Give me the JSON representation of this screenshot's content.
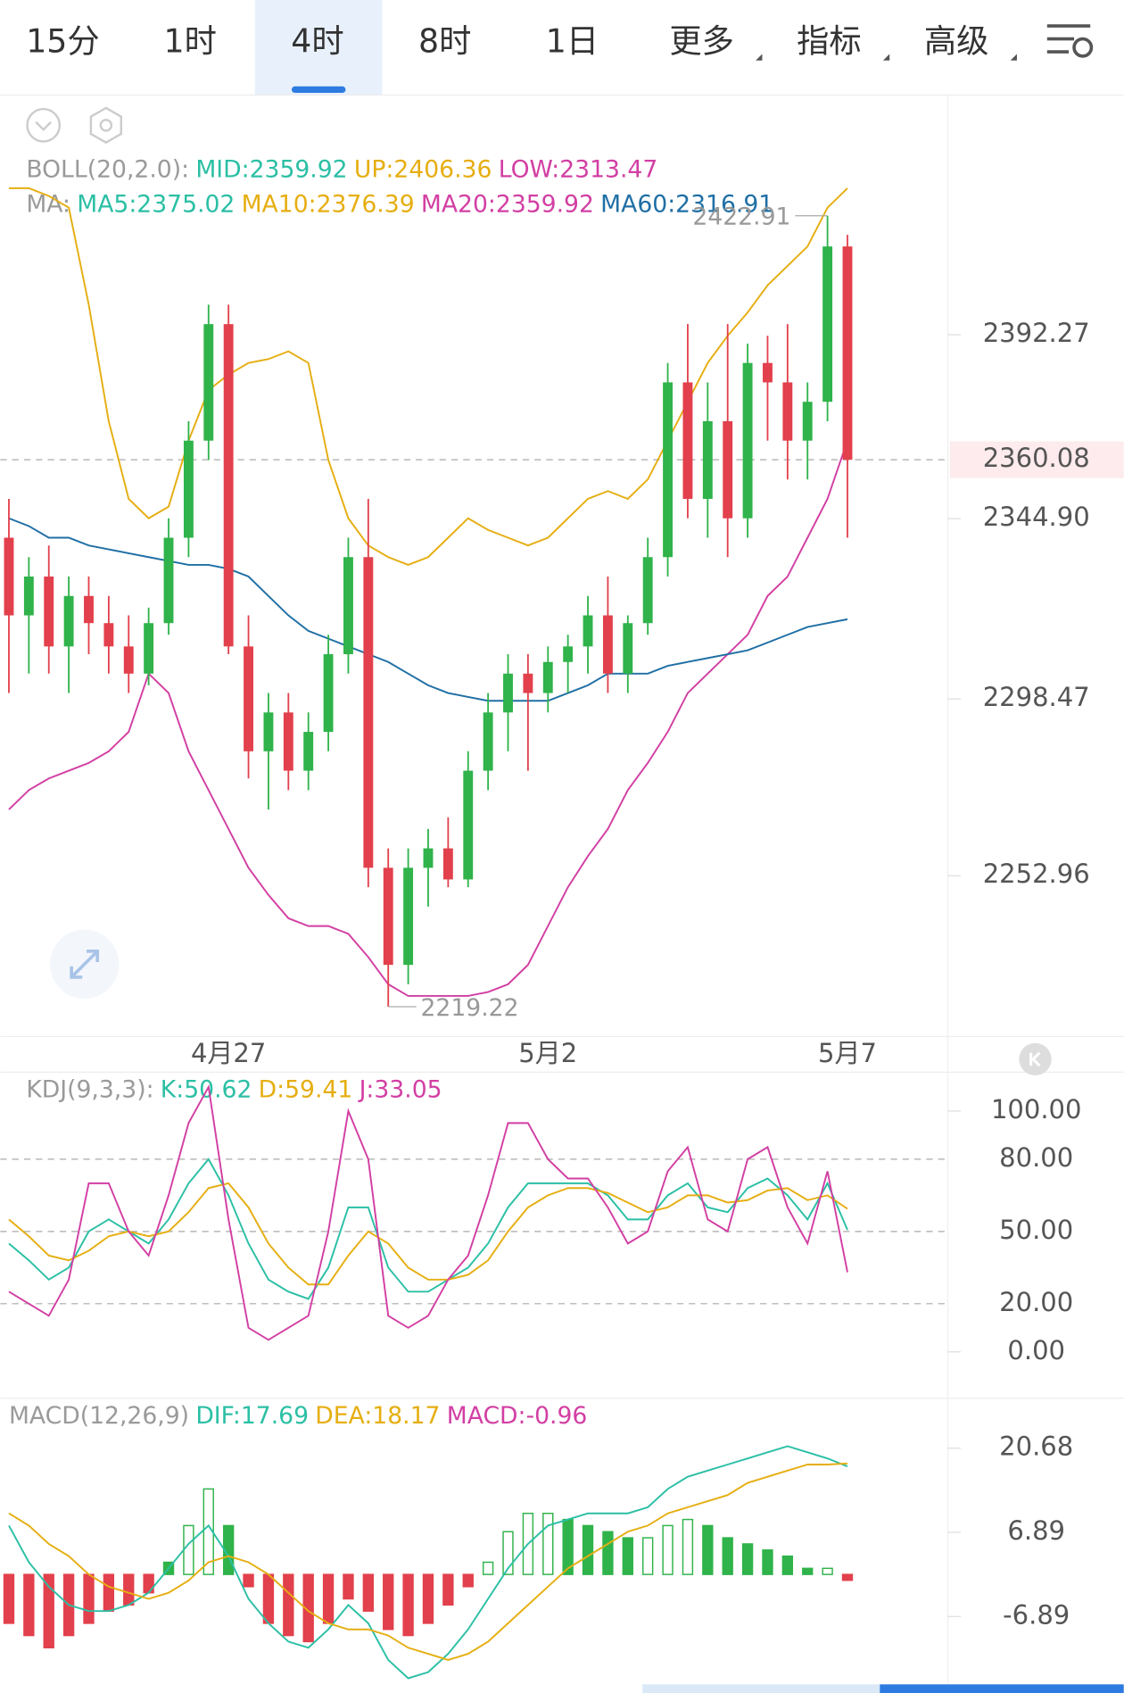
{
  "tabs": [
    {
      "label": "15分"
    },
    {
      "label": "1时"
    },
    {
      "label": "4时",
      "active": true
    },
    {
      "label": "8时"
    },
    {
      "label": "1日"
    },
    {
      "label": "更多",
      "dropdown": true
    },
    {
      "label": "指标",
      "dropdown": true
    },
    {
      "label": "高级",
      "dropdown": true
    }
  ],
  "chart_data": [
    {
      "type": "candlestick",
      "legend": [
        [
          {
            "text": "BOLL(20,2.0):",
            "color": "#9a9a9a"
          },
          {
            "text": "MID:2359.92",
            "color": "#2bbfa5"
          },
          {
            "text": "UP:2406.36",
            "color": "#e6ae12"
          },
          {
            "text": "LOW:2313.47",
            "color": "#d23fa3"
          }
        ],
        [
          {
            "text": "MA:",
            "color": "#9a9a9a"
          },
          {
            "text": "MA5:2375.02",
            "color": "#2bbfa5"
          },
          {
            "text": "MA10:2376.39",
            "color": "#e6ae12"
          },
          {
            "text": "MA20:2359.92",
            "color": "#d23fa3"
          },
          {
            "text": "MA60:2316.91",
            "color": "#1f6fa5"
          }
        ]
      ],
      "categories": [
        null,
        null,
        null,
        null,
        null,
        null,
        null,
        null,
        null,
        null,
        null,
        "4月27",
        null,
        null,
        null,
        null,
        null,
        null,
        null,
        null,
        null,
        null,
        null,
        null,
        null,
        null,
        null,
        "5月2",
        null,
        null,
        null,
        null,
        null,
        null,
        null,
        null,
        null,
        null,
        null,
        null,
        null,
        null,
        "5月7"
      ],
      "open": [
        2340,
        2320,
        2330,
        2312,
        2325,
        2318,
        2312,
        2305,
        2318,
        2340,
        2365,
        2395,
        2312,
        2285,
        2295,
        2280,
        2290,
        2310,
        2335,
        2255,
        2230,
        2255,
        2260,
        2252,
        2280,
        2295,
        2305,
        2300,
        2308,
        2312,
        2320,
        2305,
        2318,
        2335,
        2380,
        2350,
        2370,
        2345,
        2385,
        2380,
        2365,
        2375,
        2415
      ],
      "high": [
        2350,
        2335,
        2338,
        2330,
        2330,
        2325,
        2320,
        2322,
        2345,
        2370,
        2400,
        2400,
        2320,
        2300,
        2300,
        2295,
        2315,
        2340,
        2350,
        2260,
        2260,
        2265,
        2268,
        2285,
        2300,
        2310,
        2310,
        2312,
        2315,
        2325,
        2330,
        2320,
        2340,
        2385,
        2395,
        2380,
        2395,
        2390,
        2392,
        2395,
        2380,
        2422.91,
        2418
      ],
      "low": [
        2300,
        2305,
        2305,
        2300,
        2310,
        2305,
        2300,
        2302,
        2315,
        2335,
        2360,
        2310,
        2278,
        2270,
        2275,
        2275,
        2285,
        2305,
        2250,
        2219.22,
        2225,
        2245,
        2250,
        2250,
        2275,
        2285,
        2280,
        2295,
        2300,
        2305,
        2300,
        2300,
        2315,
        2330,
        2345,
        2340,
        2335,
        2340,
        2365,
        2355,
        2355,
        2370,
        2340
      ],
      "close": [
        2320,
        2330,
        2312,
        2325,
        2318,
        2312,
        2305,
        2318,
        2340,
        2365,
        2395,
        2312,
        2285,
        2295,
        2280,
        2290,
        2310,
        2335,
        2255,
        2230,
        2255,
        2260,
        2252,
        2280,
        2295,
        2305,
        2300,
        2308,
        2312,
        2320,
        2305,
        2318,
        2335,
        2380,
        2350,
        2370,
        2345,
        2385,
        2380,
        2365,
        2375,
        2415,
        2360.08
      ],
      "up_color": "#2fb34a",
      "down_color": "#e2404c",
      "series": [
        {
          "color": "#e6ae12",
          "values": [
            2430,
            2430,
            2428,
            2425,
            2400,
            2370,
            2350,
            2345,
            2348,
            2365,
            2378,
            2382,
            2385,
            2386,
            2388,
            2385,
            2360,
            2345,
            2338,
            2335,
            2333,
            2335,
            2340,
            2345,
            2342,
            2340,
            2338,
            2340,
            2345,
            2350,
            2352,
            2350,
            2355,
            2365,
            2375,
            2385,
            2392,
            2398,
            2405,
            2410,
            2415,
            2425,
            2430
          ]
        },
        {
          "color": "#d23fa3",
          "values": [
            2270,
            2275,
            2278,
            2280,
            2282,
            2285,
            2290,
            2305,
            2300,
            2285,
            2275,
            2265,
            2255,
            2248,
            2242,
            2240,
            2240,
            2238,
            2232,
            2225,
            2222,
            2222,
            2222,
            2222,
            2223,
            2225,
            2230,
            2240,
            2250,
            2258,
            2265,
            2275,
            2282,
            2290,
            2300,
            2305,
            2310,
            2315,
            2325,
            2330,
            2340,
            2350,
            2365
          ]
        },
        {
          "color": "#1f6fa5",
          "values": [
            2345,
            2343,
            2340,
            2340,
            2338,
            2337,
            2336,
            2335,
            2334,
            2333,
            2333,
            2332,
            2330,
            2325,
            2320,
            2316,
            2314,
            2312,
            2310,
            2308,
            2305,
            2302,
            2300,
            2299,
            2298,
            2298,
            2298,
            2298,
            2300,
            2302,
            2305,
            2305,
            2305,
            2307,
            2308,
            2309,
            2310,
            2311,
            2313,
            2315,
            2317,
            2318,
            2319
          ]
        }
      ],
      "ylim": [
        2212.1,
        2454.0
      ],
      "yticks": [
        2392.27,
        {
          "value": 2344.9,
          "label": "2344.90"
        },
        2298.47,
        2252.96
      ],
      "last_price": 2360.08,
      "max_label": 2422.91,
      "min_label": 2219.22
    },
    {
      "type": "line",
      "legend": [
        [
          {
            "text": "KDJ(9,3,3):",
            "color": "#9a9a9a"
          },
          {
            "text": "K:50.62",
            "color": "#2bbfa5"
          },
          {
            "text": "D:59.41",
            "color": "#e6ae12"
          },
          {
            "text": "J:33.05",
            "color": "#d23fa3"
          }
        ]
      ],
      "series": [
        {
          "color": "#2bbfa5",
          "values": [
            45,
            38,
            30,
            35,
            50,
            55,
            50,
            45,
            55,
            70,
            80,
            65,
            45,
            30,
            25,
            22,
            35,
            60,
            60,
            35,
            25,
            25,
            30,
            35,
            45,
            60,
            70,
            70,
            70,
            70,
            65,
            55,
            55,
            65,
            70,
            60,
            58,
            68,
            72,
            65,
            55,
            70,
            50.62
          ]
        },
        {
          "color": "#e6ae12",
          "values": [
            55,
            48,
            40,
            38,
            42,
            48,
            50,
            48,
            50,
            58,
            68,
            70,
            60,
            45,
            35,
            28,
            28,
            40,
            50,
            45,
            35,
            30,
            30,
            32,
            38,
            50,
            60,
            65,
            68,
            68,
            66,
            62,
            58,
            60,
            65,
            65,
            62,
            63,
            67,
            68,
            63,
            65,
            59.41
          ]
        },
        {
          "color": "#d23fa3",
          "values": [
            25,
            20,
            15,
            30,
            70,
            70,
            50,
            40,
            65,
            95,
            110,
            55,
            10,
            5,
            10,
            15,
            50,
            100,
            80,
            15,
            10,
            15,
            30,
            40,
            65,
            95,
            95,
            80,
            72,
            72,
            60,
            45,
            50,
            75,
            85,
            55,
            50,
            80,
            85,
            60,
            45,
            75,
            33.05
          ]
        }
      ],
      "ylim": [
        -17,
        113
      ],
      "yticks": [
        {
          "value": 100,
          "label": "100.00"
        },
        {
          "value": 80,
          "label": "80.00"
        },
        {
          "value": 50,
          "label": "50.00"
        },
        {
          "value": 20,
          "label": "20.00"
        },
        {
          "value": 0,
          "label": "0.00"
        }
      ]
    },
    {
      "type": "macd",
      "legend": [
        [
          {
            "text": "MACD(12,26,9)",
            "color": "#9a9a9a"
          },
          {
            "text": "DIF:17.69",
            "color": "#2bbfa5"
          },
          {
            "text": "DEA:18.17",
            "color": "#e6ae12"
          },
          {
            "text": "MACD:-0.96",
            "color": "#d23fa3"
          }
        ]
      ],
      "values": [
        -8,
        -10,
        -12,
        -10,
        -8,
        -6,
        -5,
        -3,
        2,
        8,
        14,
        8,
        -2,
        -8,
        -10,
        -11,
        -8,
        -4,
        -6,
        -9,
        -10,
        -8,
        -5,
        -2,
        2,
        7,
        10,
        10,
        9,
        8,
        7,
        6,
        6,
        8,
        9,
        8,
        6,
        5,
        4,
        3,
        1,
        1,
        -0.96
      ],
      "up_color": "#2fb34a",
      "down_color": "#e2404c",
      "series": [
        {
          "color": "#2bbfa5",
          "values": [
            8,
            2,
            -2,
            -5,
            -6,
            -6,
            -5,
            -3,
            1,
            5,
            8,
            3,
            -4,
            -8,
            -11,
            -12,
            -9,
            -5,
            -8,
            -14,
            -17,
            -16,
            -13,
            -9,
            -4,
            1,
            5,
            8,
            9,
            10,
            10,
            10,
            11,
            14,
            16,
            17,
            18,
            19,
            20,
            21,
            20,
            19,
            17.69
          ]
        },
        {
          "color": "#e6ae12",
          "values": [
            10,
            8,
            5,
            3,
            0,
            -2,
            -3,
            -4,
            -3,
            -1,
            2,
            3,
            2,
            0,
            -3,
            -6,
            -8,
            -9,
            -9,
            -10,
            -12,
            -13,
            -14,
            -13,
            -11,
            -8,
            -5,
            -2,
            1,
            3,
            5,
            7,
            8,
            10,
            11,
            12,
            13,
            15,
            16,
            17,
            18,
            18,
            18.17
          ]
        }
      ],
      "ylim": [
        -18.0,
        27.97
      ],
      "yticks": [
        20.68,
        6.89,
        -6.89
      ]
    }
  ]
}
